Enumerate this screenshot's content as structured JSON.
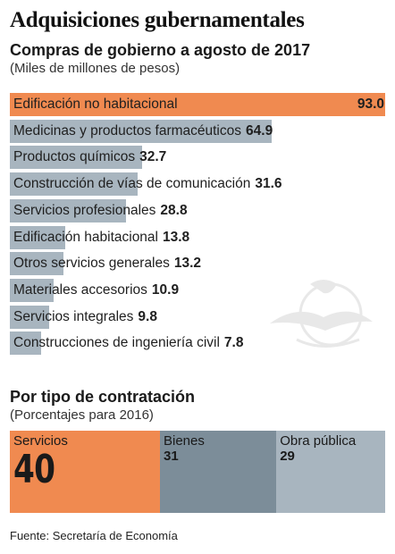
{
  "header": {
    "title": "Adquisiciones gubernamentales",
    "subtitle": "Compras de gobierno a agosto de 2017",
    "units": "(Miles de millones de pesos)"
  },
  "contract_section": {
    "title": "Por tipo de contratación",
    "units": "(Porcentajes para 2016)"
  },
  "source": "Fuente: Secretaría de Economía",
  "colors": {
    "highlight": "#f08a50",
    "bar": "#a8b5bf",
    "dark_block": "#7c8d99",
    "light_block": "#a8b5bf"
  },
  "chart_data": [
    {
      "type": "bar",
      "orientation": "horizontal",
      "title": "Compras de gobierno a agosto de 2017",
      "ylabel": "(Miles de millones de pesos)",
      "categories": [
        "Edificación no habitacional",
        "Medicinas y productos farmacéuticos",
        "Productos químicos",
        "Construcción de vías de comunicación",
        "Servicios profesionales",
        "Edificación habitacional",
        "Otros servicios generales",
        "Materiales accesorios",
        "Servicios integrales",
        "Construcciones de ingeniería civil"
      ],
      "values": [
        93.0,
        64.9,
        32.7,
        31.6,
        28.8,
        13.8,
        13.2,
        10.9,
        9.8,
        7.8
      ],
      "value_labels": [
        "93.0",
        "64.9",
        "32.7",
        "31.6",
        "28.8",
        "13.8",
        "13.2",
        "10.9",
        "9.8",
        "7.8"
      ],
      "highlight_index": 0,
      "xlim": [
        0,
        93.0
      ]
    },
    {
      "type": "treemap",
      "title": "Por tipo de contratación",
      "units": "(Porcentajes para 2016)",
      "categories": [
        "Servicios",
        "Bienes",
        "Obra pública"
      ],
      "values": [
        40,
        31,
        29
      ]
    }
  ]
}
